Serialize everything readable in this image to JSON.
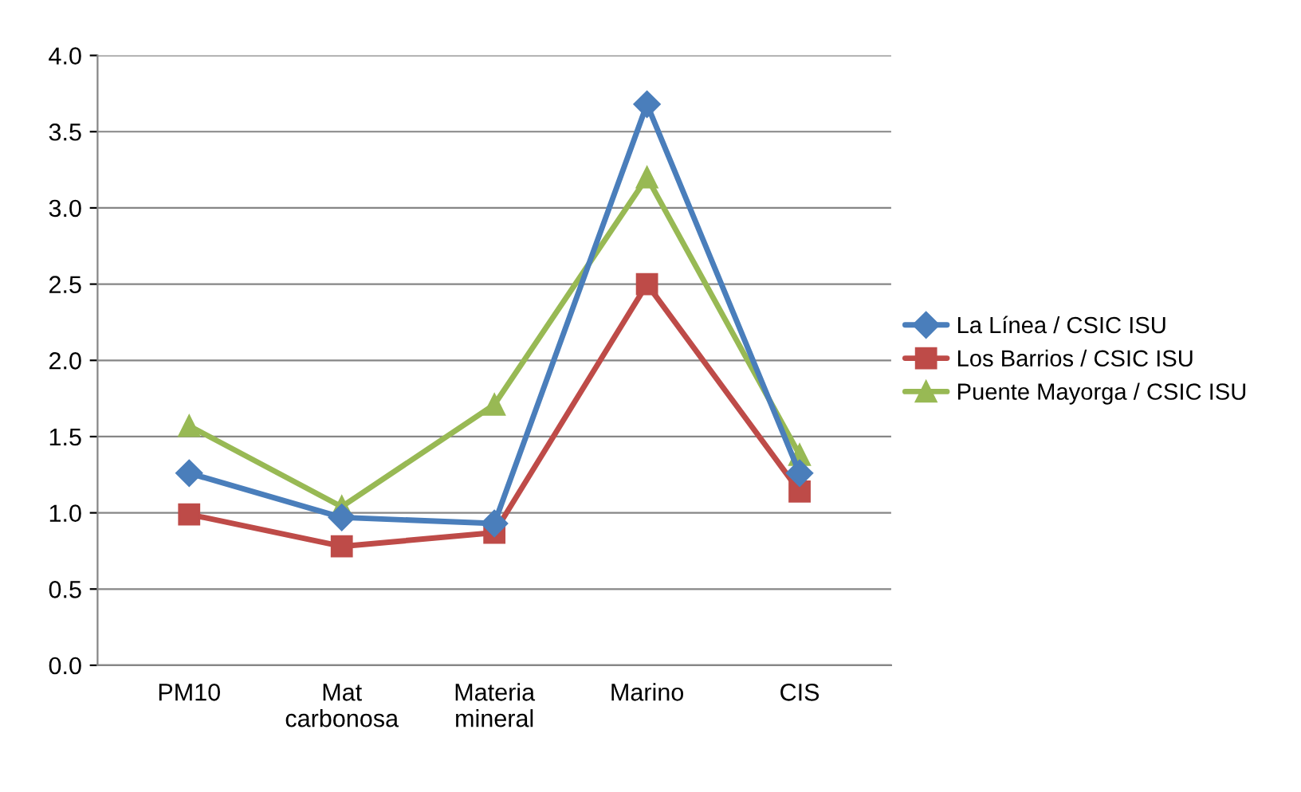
{
  "chart_data": {
    "type": "line",
    "categories": [
      "PM10",
      "Mat\ncarbonosa",
      "Materia\nmineral",
      "Marino",
      "CIS"
    ],
    "series": [
      {
        "name": "La Línea / CSIC ISU",
        "color": "#4a7ebb",
        "marker": "diamond",
        "values": [
          1.26,
          0.97,
          0.93,
          3.68,
          1.26
        ]
      },
      {
        "name": "Los Barrios / CSIC ISU",
        "color": "#be4b48",
        "marker": "square",
        "values": [
          0.99,
          0.78,
          0.87,
          2.5,
          1.14
        ]
      },
      {
        "name": "Puente Mayorga / CSIC ISU",
        "color": "#98b954",
        "marker": "triangle",
        "values": [
          1.57,
          1.04,
          1.71,
          3.2,
          1.38
        ]
      }
    ],
    "ylim": [
      0,
      4
    ],
    "yticks": [
      {
        "value": 0,
        "label": "0.0"
      },
      {
        "value": 0.5,
        "label": "0.5"
      },
      {
        "value": 1,
        "label": "1.0"
      },
      {
        "value": 1.5,
        "label": "1.5"
      },
      {
        "value": 2,
        "label": "2.0"
      },
      {
        "value": 2.5,
        "label": "2.5"
      },
      {
        "value": 3,
        "label": "3.0"
      },
      {
        "value": 3.5,
        "label": "3.5"
      },
      {
        "value": 4,
        "label": "4.0"
      }
    ],
    "grid": "y",
    "legend": "right"
  }
}
